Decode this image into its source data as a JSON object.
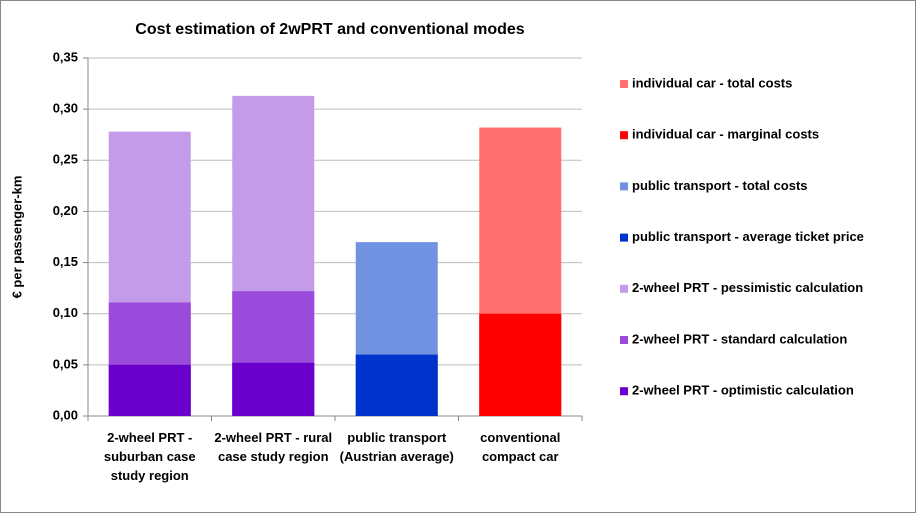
{
  "chart_data": {
    "type": "bar",
    "title": "Cost estimation of 2wPRT and conventional modes",
    "y_label": "€ per passenger-km",
    "categories": [
      "2-wheel PRT - suburban case study region",
      "2-wheel PRT - rural case study region",
      "public transport (Austrian average)",
      "conventional compact car"
    ],
    "series": [
      {
        "name": "individual car - total costs",
        "color": "#ff7171",
        "values": [
          null,
          null,
          null,
          0.282
        ]
      },
      {
        "name": "individual car - marginal costs",
        "color": "#ff0000",
        "values": [
          null,
          null,
          null,
          0.1
        ]
      },
      {
        "name": "public transport - total costs",
        "color": "#7092e0",
        "values": [
          null,
          null,
          0.17,
          null
        ]
      },
      {
        "name": "public transport - average ticket price",
        "color": "#0033cc",
        "values": [
          null,
          null,
          0.06,
          null
        ]
      },
      {
        "name": "2-wheel PRT - pessimistic calculation",
        "color": "#c49be8",
        "values": [
          0.278,
          0.313,
          null,
          null
        ]
      },
      {
        "name": "2-wheel PRT - standard calculation",
        "color": "#9a4bdc",
        "values": [
          0.111,
          0.122,
          null,
          null
        ]
      },
      {
        "name": "2-wheel PRT - optimistic calculation",
        "color": "#6a00cc",
        "values": [
          0.05,
          0.052,
          null,
          null
        ]
      }
    ],
    "ylim": [
      0,
      0.35
    ],
    "yticks": [
      {
        "value": 0,
        "label": "0,00"
      },
      {
        "value": 0.05,
        "label": "0,05"
      },
      {
        "value": 0.1,
        "label": "0,10"
      },
      {
        "value": 0.15,
        "label": "0,15"
      },
      {
        "value": 0.2,
        "label": "0,20"
      },
      {
        "value": 0.25,
        "label": "0,25"
      },
      {
        "value": 0.3,
        "label": "0,30"
      },
      {
        "value": 0.35,
        "label": "0,35"
      }
    ],
    "grid": true,
    "legend": "right",
    "overlap": true
  }
}
